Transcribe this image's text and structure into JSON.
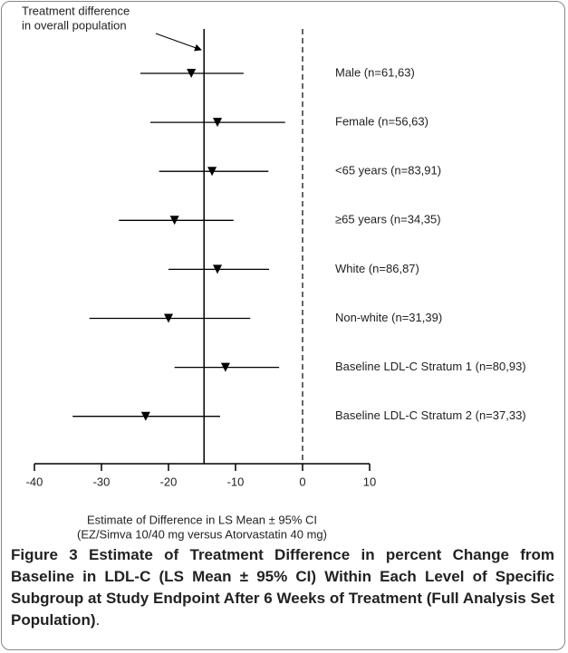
{
  "chart_data": {
    "type": "forest",
    "categories": [
      "Male (n=61,63)",
      "Female (n=56,63)",
      "<65 years (n=83,91)",
      "≥65 years (n=34,35)",
      "White (n=86,87)",
      "Non-white (n=31,39)",
      "Baseline LDL-C Stratum 1 (n=80,93)",
      "Baseline LDL-C Stratum 2 (n=37,33)"
    ],
    "values": [
      -16.6,
      -12.7,
      -13.5,
      -19.1,
      -12.7,
      -20.0,
      -11.5,
      -23.4
    ],
    "lower": [
      -24.2,
      -22.7,
      -21.4,
      -27.4,
      -20.0,
      -31.8,
      -19.1,
      -34.3
    ],
    "upper": [
      -8.8,
      -2.6,
      -5.1,
      -10.3,
      -5.0,
      -7.8,
      -3.5,
      -12.3
    ],
    "overall_difference": -14.7,
    "reference_line": 0,
    "annotation": [
      "Treatment difference",
      "in overall population"
    ],
    "xlabel": [
      "Estimate of Difference in LS Mean ± 95% CI",
      "(EZ/Simva 10/40 mg versus Atorvastatin 40 mg)"
    ],
    "xlim": [
      -40,
      10
    ],
    "xticks": [
      -40,
      -30,
      -20,
      -10,
      0,
      10
    ],
    "color": "#000000"
  },
  "caption": {
    "label": "Figure 3",
    "text": "Estimate of Treatment Difference in percent Change from Baseline in LDL-C (LS Mean ± 95% CI) Within Each Level of Specific Subgroup at Study Endpoint After 6 Weeks of Treatment (Full Analysis Set Population)",
    "end": "."
  }
}
